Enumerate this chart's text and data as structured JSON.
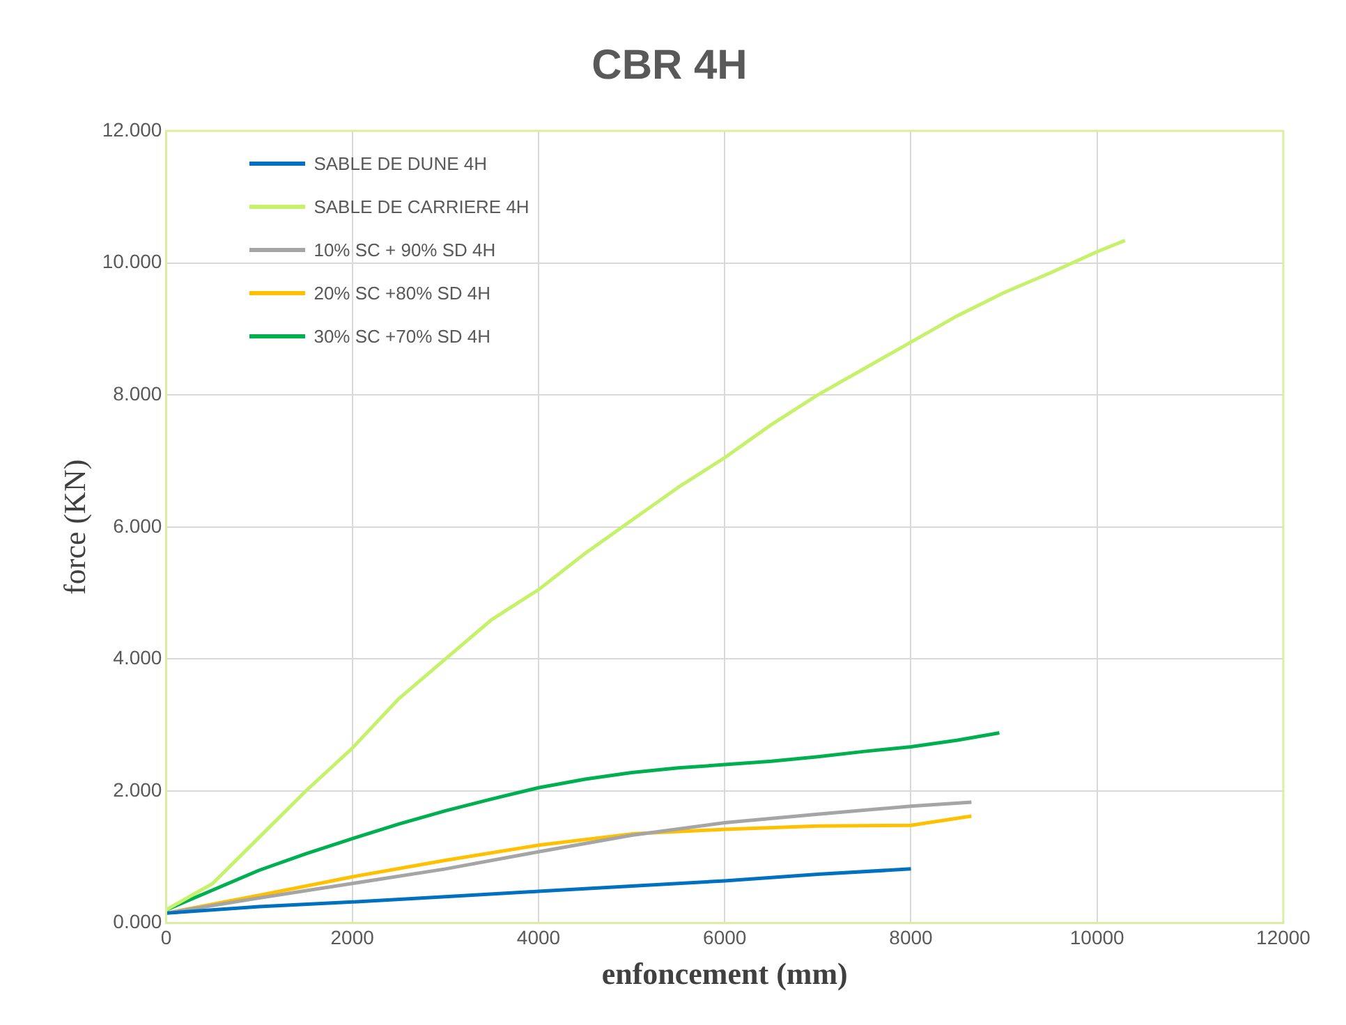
{
  "chart_data": {
    "type": "line",
    "title": "CBR 4H",
    "xlabel": "enfoncement (mm)",
    "ylabel": "force (KN)",
    "xlim": [
      0,
      12000
    ],
    "xticks": [
      0,
      2000,
      4000,
      6000,
      8000,
      10000,
      12000
    ],
    "ylim": [
      0,
      12
    ],
    "yticks": [
      {
        "value": 0,
        "label": "0.000"
      },
      {
        "value": 2,
        "label": "2.000"
      },
      {
        "value": 4,
        "label": "4.000"
      },
      {
        "value": 6,
        "label": "6.000"
      },
      {
        "value": 8,
        "label": "8.000"
      },
      {
        "value": 10,
        "label": "10.000"
      },
      {
        "value": 12,
        "label": "12.000"
      }
    ],
    "grid": true,
    "legend": "top left",
    "marker": "none",
    "line_style": "solid",
    "series": [
      {
        "name": "SABLE DE DUNE 4H",
        "color": "#0070c0",
        "x": [
          0,
          1000,
          2000,
          3000,
          4000,
          5000,
          6000,
          7000,
          8000
        ],
        "values": [
          0.15,
          0.25,
          0.32,
          0.4,
          0.48,
          0.56,
          0.64,
          0.74,
          0.82
        ]
      },
      {
        "name": "SABLE DE CARRIERE 4H",
        "color": "#c6f16a",
        "x": [
          0,
          500,
          1000,
          1500,
          2000,
          2500,
          3000,
          3500,
          4000,
          4500,
          5000,
          5500,
          6000,
          6500,
          7000,
          7500,
          8000,
          8500,
          9000,
          9500,
          10000,
          10300
        ],
        "values": [
          0.2,
          0.6,
          1.3,
          2.0,
          2.65,
          3.4,
          4.0,
          4.6,
          5.05,
          5.6,
          6.1,
          6.6,
          7.05,
          7.55,
          8.0,
          8.4,
          8.8,
          9.2,
          9.55,
          9.85,
          10.17,
          10.34
        ]
      },
      {
        "name": "10% SC + 90% SD 4H",
        "color": "#a5a5a5",
        "x": [
          0,
          1000,
          2000,
          3000,
          4000,
          5000,
          6000,
          7000,
          8000,
          8650
        ],
        "values": [
          0.15,
          0.38,
          0.6,
          0.82,
          1.08,
          1.33,
          1.52,
          1.65,
          1.77,
          1.83
        ]
      },
      {
        "name": "20% SC +80% SD 4H",
        "color": "#ffc000",
        "x": [
          0,
          1000,
          2000,
          3000,
          4000,
          5000,
          6000,
          7000,
          8000,
          8650
        ],
        "values": [
          0.15,
          0.42,
          0.7,
          0.95,
          1.18,
          1.35,
          1.42,
          1.47,
          1.48,
          1.62
        ]
      },
      {
        "name": "30% SC +70% SD 4H",
        "color": "#00b050",
        "x": [
          0,
          500,
          1000,
          1500,
          2000,
          2500,
          3000,
          3500,
          4000,
          4500,
          5000,
          5500,
          6000,
          6500,
          7000,
          7500,
          8000,
          8500,
          8950
        ],
        "values": [
          0.2,
          0.5,
          0.8,
          1.05,
          1.28,
          1.5,
          1.7,
          1.88,
          2.05,
          2.18,
          2.28,
          2.35,
          2.4,
          2.45,
          2.52,
          2.6,
          2.67,
          2.77,
          2.88
        ]
      }
    ]
  }
}
